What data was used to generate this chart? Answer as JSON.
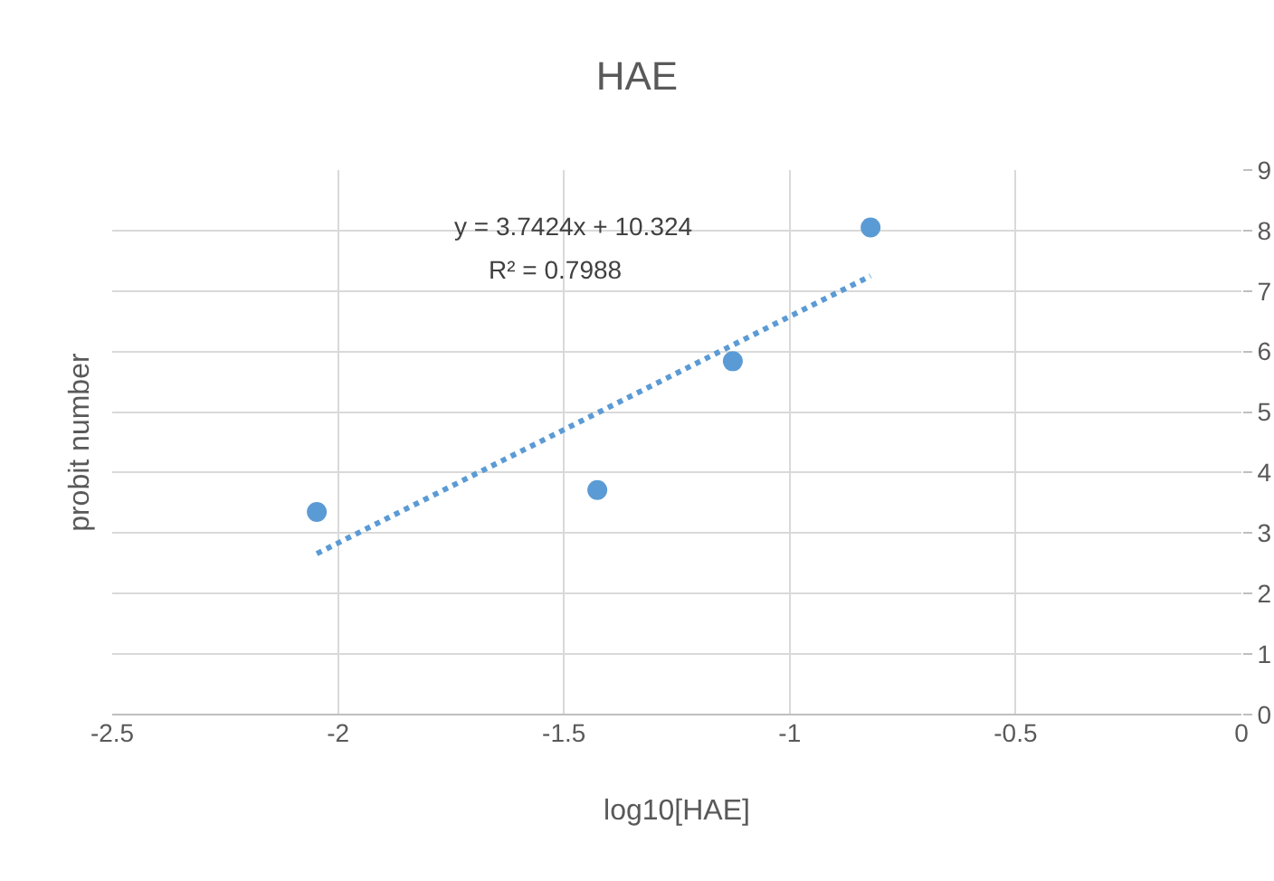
{
  "chart_data": {
    "type": "scatter",
    "title": "HAE",
    "xlabel": "log10[HAE]",
    "ylabel": "probit number",
    "xlim": [
      -2.5,
      0
    ],
    "xticks": [
      -2.5,
      -2,
      -1.5,
      -1,
      -0.5,
      0
    ],
    "ylim": [
      0,
      9
    ],
    "yticks": [
      0,
      1,
      2,
      3,
      4,
      5,
      6,
      7,
      8,
      9
    ],
    "grid": true,
    "series": [
      {
        "color": "#5b9bd5",
        "marker": "circle",
        "x": [
          -2.047,
          -1.426,
          -1.126,
          -0.821
        ],
        "values": [
          3.35,
          3.71,
          5.84,
          8.05
        ]
      },
      {
        "type": "line",
        "color": "#5b9bd5",
        "marker": "none",
        "line_style": "dotted",
        "x": [
          -2.047,
          -0.821
        ],
        "values": [
          2.66,
          7.25
        ]
      }
    ],
    "annotations": [
      "y = 3.7424x + 10.324",
      "R² = 0.7988"
    ]
  }
}
